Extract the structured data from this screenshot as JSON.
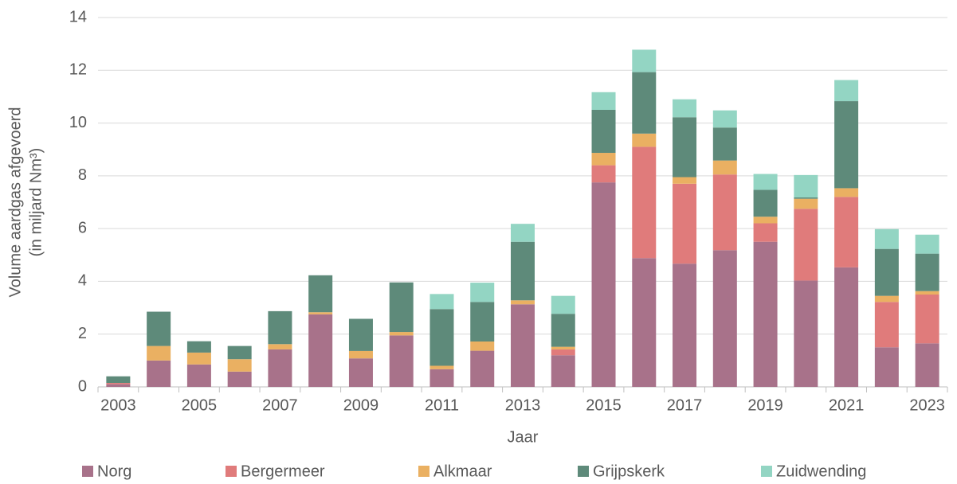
{
  "chart_data": {
    "type": "stacked_bar",
    "x_label": "Jaar",
    "y_label": [
      "Volume aardgas afgevoerd",
      "(in miljard Nm³)"
    ],
    "categories": [
      "2003",
      null,
      "2005",
      null,
      "2007",
      null,
      "2009",
      null,
      "2011",
      null,
      "2013",
      null,
      "2015",
      null,
      "2017",
      null,
      "2019",
      null,
      "2021",
      null,
      "2023"
    ],
    "series": [
      {
        "name": "Norg",
        "color": "#a8728a",
        "values": [
          0.1,
          1.0,
          0.85,
          0.58,
          1.42,
          2.75,
          1.08,
          1.95,
          0.67,
          1.37,
          3.13,
          1.2,
          7.75,
          4.88,
          4.67,
          5.18,
          5.5,
          4.03,
          4.53,
          1.5,
          1.65
        ]
      },
      {
        "name": "Bergermeer",
        "color": "#e07b7b",
        "values": [
          0.05,
          0,
          0,
          0,
          0,
          0,
          0,
          0,
          0,
          0,
          0,
          0.22,
          0.65,
          4.22,
          3.03,
          2.87,
          0.7,
          2.72,
          2.67,
          1.72,
          1.85
        ]
      },
      {
        "name": "Alkmaar",
        "color": "#eab062",
        "values": [
          0,
          0.55,
          0.45,
          0.47,
          0.2,
          0.08,
          0.28,
          0.13,
          0.13,
          0.35,
          0.15,
          0.1,
          0.47,
          0.5,
          0.25,
          0.53,
          0.25,
          0.38,
          0.33,
          0.23,
          0.13
        ]
      },
      {
        "name": "Grijpskerk",
        "color": "#5e8a7a",
        "values": [
          0.25,
          1.3,
          0.43,
          0.5,
          1.25,
          1.4,
          1.22,
          1.88,
          2.15,
          1.5,
          2.22,
          1.25,
          1.63,
          2.33,
          2.27,
          1.25,
          1.02,
          0.05,
          3.3,
          1.78,
          1.42
        ]
      },
      {
        "name": "Zuidwending",
        "color": "#93d5c3",
        "values": [
          0,
          0,
          0,
          0,
          0,
          0,
          0,
          0,
          0.57,
          0.73,
          0.68,
          0.68,
          0.67,
          0.85,
          0.68,
          0.65,
          0.6,
          0.85,
          0.8,
          0.75,
          0.72
        ]
      }
    ],
    "ylim": [
      0,
      14
    ],
    "yticks": [
      0,
      2,
      4,
      6,
      8,
      10,
      12,
      14
    ],
    "grid": true,
    "legend": "bottom"
  }
}
